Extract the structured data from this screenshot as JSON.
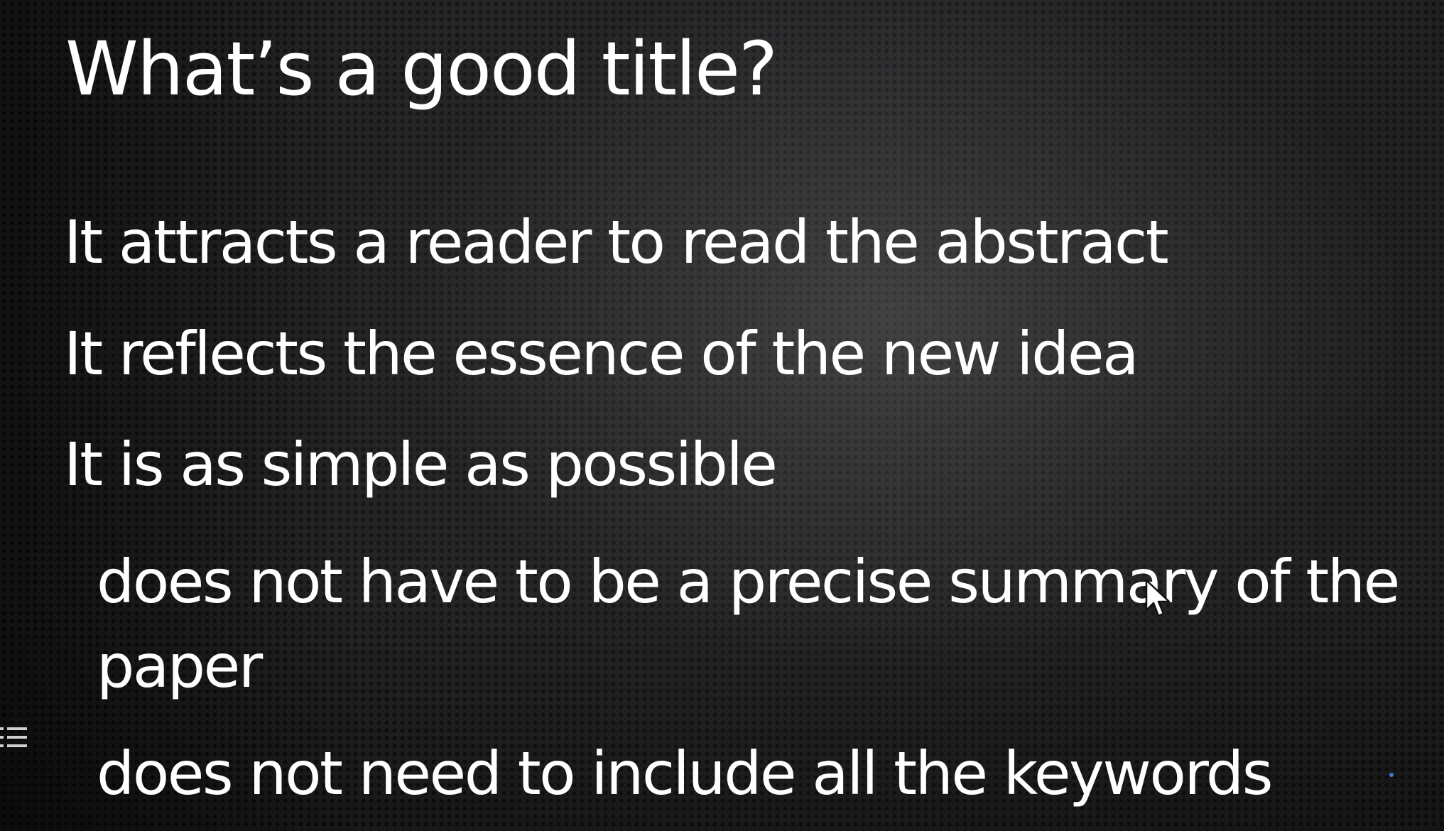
{
  "slide": {
    "title": "What’s a good title?",
    "bullets": [
      "It attracts a reader to read the abstract",
      "It reflects the essence of the new idea",
      "It is as simple as possible"
    ],
    "sub_bullets": [
      "does not have to be a precise summary of the paper",
      "does not need to include all the keywords"
    ]
  },
  "icons": {
    "menu": "menu-icon",
    "cursor": "mouse-cursor-icon",
    "indicator": "indicator-dot"
  },
  "colors": {
    "text": "#ffffff",
    "background": "#262628",
    "indicator": "#3d7ad6"
  }
}
